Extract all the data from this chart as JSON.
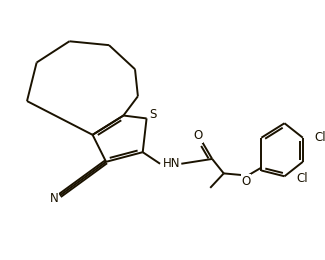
{
  "bg_color": "#ffffff",
  "bond_color": "#1a1200",
  "figsize": [
    3.25,
    2.6
  ],
  "dpi": 100,
  "lw": 1.4,
  "S_label": "S",
  "HN_label": "HN",
  "O1_label": "O",
  "O2_label": "O",
  "N_label": "N",
  "Cl1_label": "Cl",
  "Cl2_label": "Cl"
}
